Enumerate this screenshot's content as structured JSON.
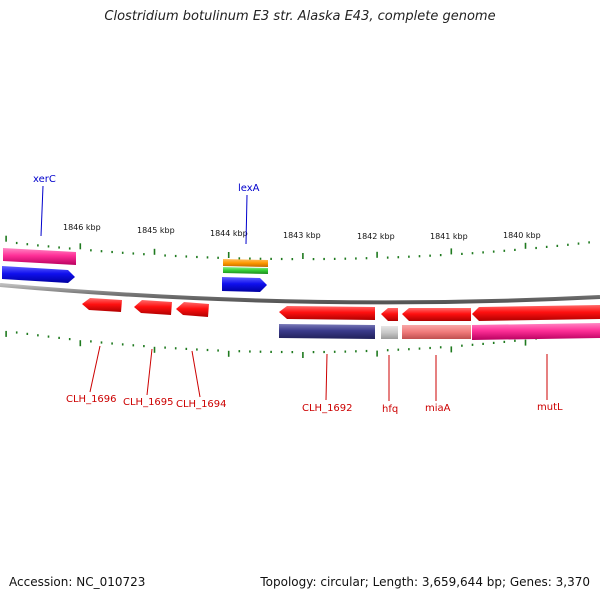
{
  "title": "Clostridium botulinum E3 str. Alaska E43, complete genome",
  "accession": "Accession: NC_010723",
  "summary": "Topology: circular; Length: 3,659,644 bp; Genes: 3,370",
  "colors": {
    "backbone": "#888888",
    "tick": "#1f7a1f",
    "gene_red": "#ff1111",
    "gene_blue": "#1818ee",
    "gene_pink": "#ff3399",
    "gene_navy": "#3a3a8a",
    "gene_salmon": "#f08080",
    "gene_orange": "#ff9900",
    "gene_green": "#33cc33",
    "gene_grey": "#c8c8c8",
    "label_red": "#cc0000",
    "label_blue": "#0000cc"
  },
  "kbp_labels": [
    {
      "pos_kbp": 1846,
      "text": "1846 kbp"
    },
    {
      "pos_kbp": 1845,
      "text": "1845 kbp"
    },
    {
      "pos_kbp": 1844,
      "text": "1844 kbp"
    },
    {
      "pos_kbp": 1843,
      "text": "1843 kbp"
    },
    {
      "pos_kbp": 1842,
      "text": "1842 kbp"
    },
    {
      "pos_kbp": 1841,
      "text": "1841 kbp"
    },
    {
      "pos_kbp": 1840,
      "text": "1840 kbp"
    }
  ],
  "gene_labels": [
    {
      "name": "xerC",
      "color": "blue"
    },
    {
      "name": "lexA",
      "color": "blue"
    },
    {
      "name": "CLH_1696",
      "color": "red"
    },
    {
      "name": "CLH_1695",
      "color": "red"
    },
    {
      "name": "CLH_1694",
      "color": "red"
    },
    {
      "name": "CLH_1692",
      "color": "red"
    },
    {
      "name": "hfq",
      "color": "red"
    },
    {
      "name": "miaA",
      "color": "red"
    },
    {
      "name": "mutL",
      "color": "red"
    }
  ]
}
